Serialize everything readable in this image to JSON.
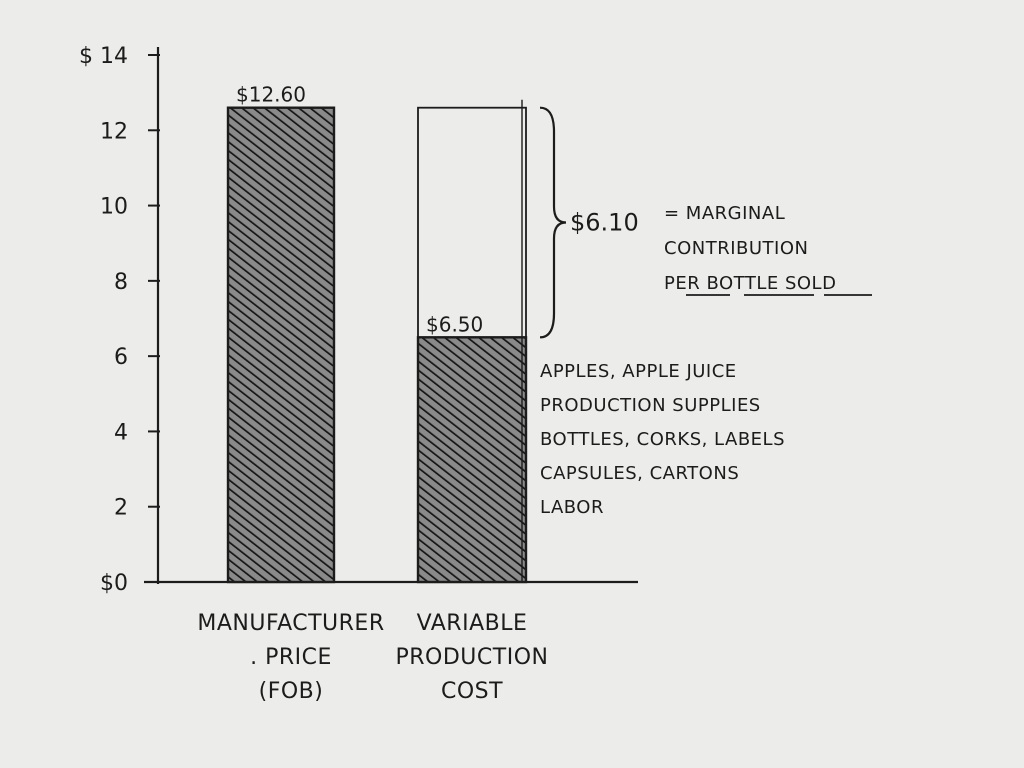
{
  "chart_data": {
    "type": "bar",
    "categories": [
      [
        "MANUFACTURER",
        ". PRICE",
        "(FOB)"
      ],
      [
        "VARIABLE",
        "PRODUCTION",
        "COST"
      ]
    ],
    "values": [
      12.6,
      6.5
    ],
    "value_labels": [
      "$12.60",
      "$6.50"
    ],
    "reference_total": 12.6,
    "difference": 6.1,
    "difference_label": "$6.10",
    "difference_annotation": [
      "= MARGINAL",
      "CONTRIBUTION",
      "PER BOTTLE SOLD"
    ],
    "cost_components": [
      "APPLES, APPLE JUICE",
      "PRODUCTION SUPPLIES",
      "BOTTLES, CORKS, LABELS",
      "CAPSULES, CARTONS",
      "LABOR"
    ],
    "y_ticks": [
      0,
      2,
      4,
      6,
      8,
      10,
      12,
      14
    ],
    "y_tick_labels": [
      "$0",
      "2",
      "4",
      "6",
      "8",
      "10",
      "12",
      "$ 14"
    ],
    "ylim": [
      0,
      14
    ],
    "grid": false,
    "legend": "none",
    "bar_fill": "hatched",
    "colors": {
      "ink": "#1c1c1c",
      "hatch": "#2b2b2b",
      "paper": "#ececea"
    }
  }
}
